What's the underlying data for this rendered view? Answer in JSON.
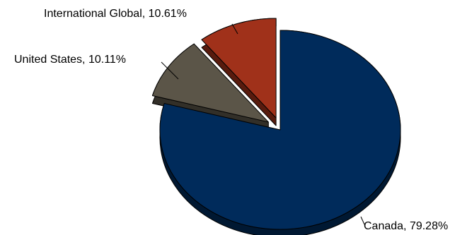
{
  "chart_data": {
    "type": "pie",
    "style": "3d-exploded",
    "slices": [
      {
        "label": "Canada",
        "value": 79.28,
        "display": "Canada, 79.28%",
        "color": "#002B5B"
      },
      {
        "label": "United States",
        "value": 10.11,
        "display": "United States, 10.11%",
        "color": "#5B5548"
      },
      {
        "label": "International Global",
        "value": 10.61,
        "display": "International Global, 10.61%",
        "color": "#A0311A"
      }
    ]
  }
}
